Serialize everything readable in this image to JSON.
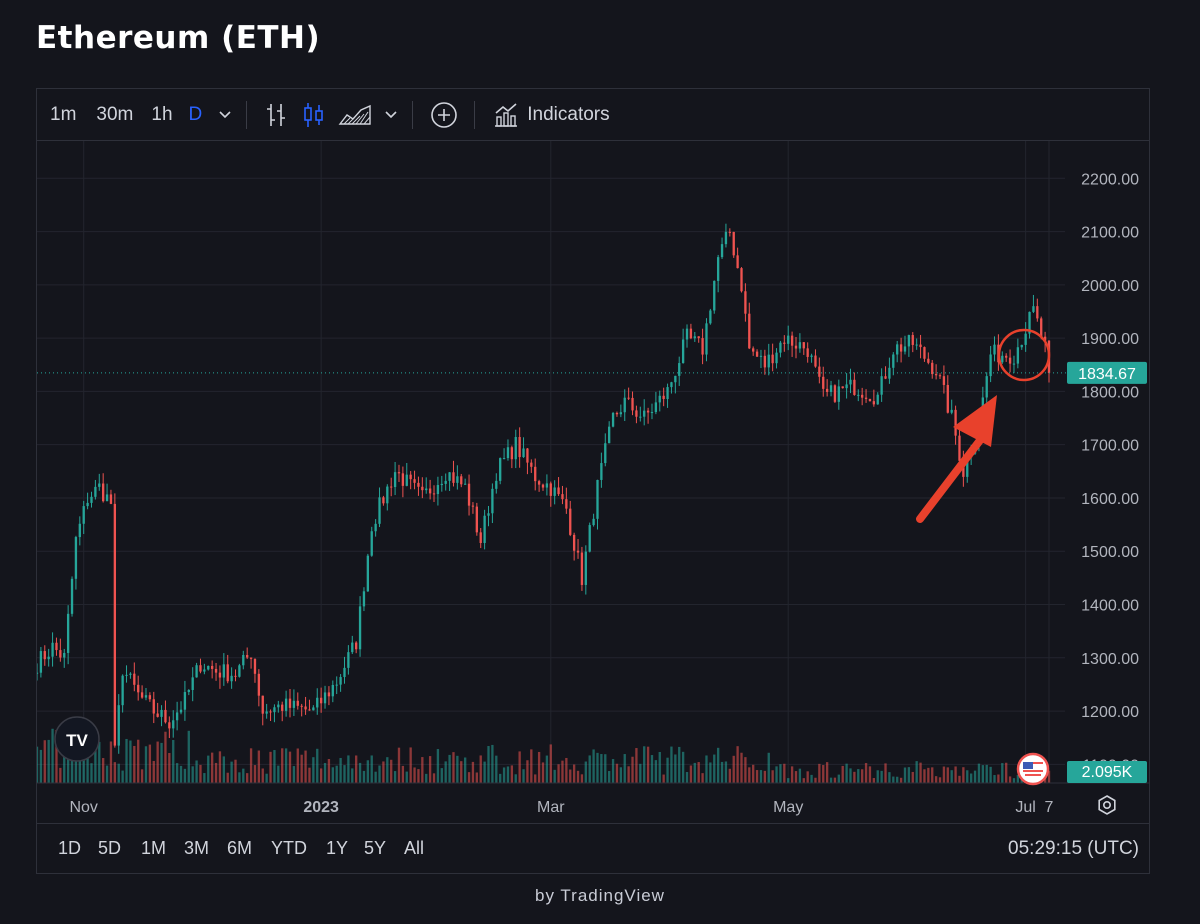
{
  "page": {
    "title": "Ethereum (ETH)"
  },
  "toolbar": {
    "intervals": [
      "1m",
      "30m",
      "1h",
      "D"
    ],
    "active_interval": "D",
    "indicators_label": "Indicators",
    "icons": [
      "chevron-down-icon",
      "bar-chart-icon",
      "candlestick-icon",
      "area-chart-icon",
      "chevron-down-icon",
      "plus-circle-icon",
      "indicators-icon"
    ]
  },
  "range_bar": {
    "items": [
      "1D",
      "5D",
      "1M",
      "3M",
      "6M",
      "YTD",
      "1Y",
      "5Y",
      "All"
    ],
    "clock": "05:29:15 (UTC)"
  },
  "footer": {
    "text": "by TradingView"
  },
  "colors": {
    "background": "#14151c",
    "up": "#26a69a",
    "down": "#ef5350",
    "price_badge": "#26a69a",
    "annotation": "#e8412c",
    "active": "#2962ff"
  },
  "chart_data": {
    "type": "candlestick",
    "symbol": "ETH",
    "y_axis": {
      "ticks": [
        "2200.00",
        "2100.00",
        "2000.00",
        "1900.00",
        "1800.00",
        "1700.00",
        "1600.00",
        "1500.00",
        "1400.00",
        "1300.00",
        "1200.00",
        "1100.00"
      ],
      "range": [
        1065,
        2270
      ]
    },
    "x_axis": {
      "ticks": [
        "Nov",
        "2023",
        "Mar",
        "May",
        "Jul",
        "7"
      ],
      "range": [
        "2022-10-20",
        "2023-07-07"
      ]
    },
    "last_price": 1834.67,
    "last_price_label": "1834.67",
    "volume_label": "2.095K",
    "grid": true,
    "price_path": [
      [
        "2022-10-20",
        1290
      ],
      [
        "2022-10-24",
        1320
      ],
      [
        "2022-10-27",
        1300
      ],
      [
        "2022-10-30",
        1520
      ],
      [
        "2022-11-02",
        1600
      ],
      [
        "2022-11-05",
        1620
      ],
      [
        "2022-11-08",
        1590
      ],
      [
        "2022-11-09",
        1120
      ],
      [
        "2022-11-11",
        1280
      ],
      [
        "2022-11-15",
        1230
      ],
      [
        "2022-11-19",
        1200
      ],
      [
        "2022-11-23",
        1180
      ],
      [
        "2022-11-27",
        1220
      ],
      [
        "2022-12-01",
        1290
      ],
      [
        "2022-12-05",
        1275
      ],
      [
        "2022-12-10",
        1270
      ],
      [
        "2022-12-14",
        1310
      ],
      [
        "2022-12-17",
        1200
      ],
      [
        "2022-12-22",
        1210
      ],
      [
        "2022-12-30",
        1200
      ],
      [
        "2023-01-05",
        1255
      ],
      [
        "2023-01-10",
        1330
      ],
      [
        "2023-01-14",
        1550
      ],
      [
        "2023-01-20",
        1650
      ],
      [
        "2023-01-27",
        1600
      ],
      [
        "2023-02-02",
        1650
      ],
      [
        "2023-02-07",
        1620
      ],
      [
        "2023-02-11",
        1520
      ],
      [
        "2023-02-15",
        1650
      ],
      [
        "2023-02-20",
        1700
      ],
      [
        "2023-02-25",
        1640
      ],
      [
        "2023-03-01",
        1620
      ],
      [
        "2023-03-05",
        1580
      ],
      [
        "2023-03-09",
        1450
      ],
      [
        "2023-03-13",
        1620
      ],
      [
        "2023-03-17",
        1750
      ],
      [
        "2023-03-20",
        1780
      ],
      [
        "2023-03-25",
        1750
      ],
      [
        "2023-03-31",
        1800
      ],
      [
        "2023-04-05",
        1900
      ],
      [
        "2023-04-09",
        1880
      ],
      [
        "2023-04-13",
        2050
      ],
      [
        "2023-04-16",
        2100
      ],
      [
        "2023-04-19",
        2000
      ],
      [
        "2023-04-21",
        1880
      ],
      [
        "2023-04-25",
        1850
      ],
      [
        "2023-04-30",
        1900
      ],
      [
        "2023-05-06",
        1880
      ],
      [
        "2023-05-10",
        1790
      ],
      [
        "2023-05-18",
        1810
      ],
      [
        "2023-05-24",
        1790
      ],
      [
        "2023-05-28",
        1880
      ],
      [
        "2023-06-02",
        1890
      ],
      [
        "2023-06-08",
        1840
      ],
      [
        "2023-06-12",
        1750
      ],
      [
        "2023-06-15",
        1650
      ],
      [
        "2023-06-19",
        1740
      ],
      [
        "2023-06-22",
        1870
      ],
      [
        "2023-06-28",
        1870
      ],
      [
        "2023-07-03",
        1950
      ],
      [
        "2023-07-07",
        1860
      ]
    ]
  }
}
